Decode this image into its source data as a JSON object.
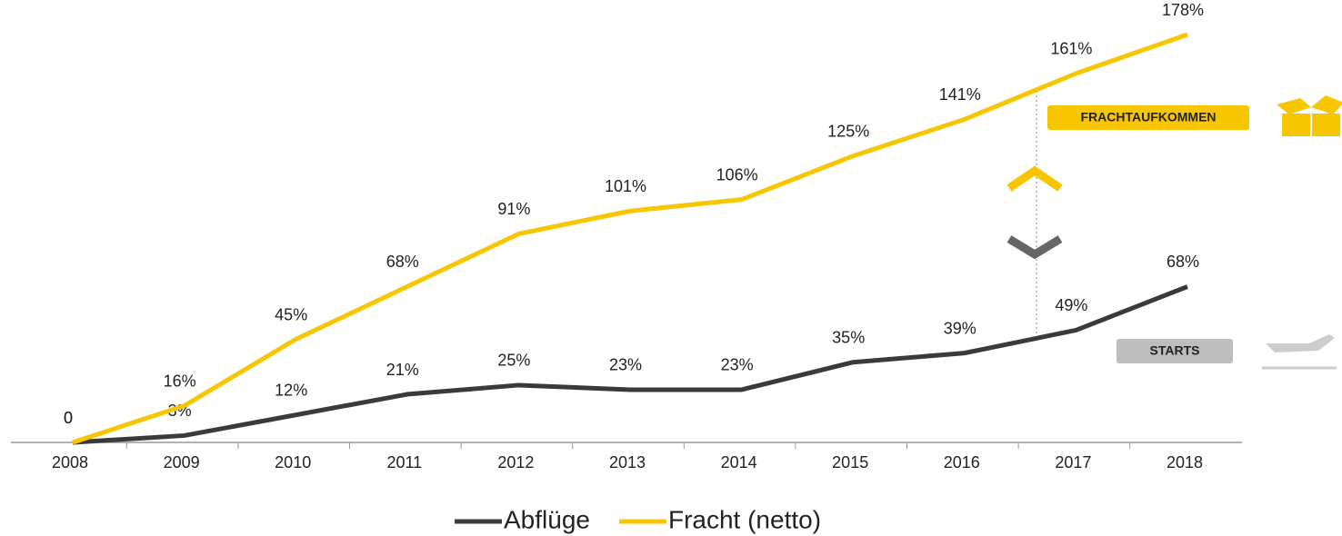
{
  "chart_data": {
    "type": "line",
    "categories": [
      "2008",
      "2009",
      "2010",
      "2011",
      "2012",
      "2013",
      "2014",
      "2015",
      "2016",
      "2017",
      "2018"
    ],
    "series": [
      {
        "name": "Abflüge",
        "color": "#3a3a3a",
        "values": [
          0,
          3,
          12,
          21,
          25,
          23,
          23,
          35,
          39,
          49,
          68
        ],
        "value_labels": [
          "0",
          "3%",
          "12%",
          "21%",
          "25%",
          "23%",
          "23%",
          "35%",
          "39%",
          "49%",
          "68%"
        ]
      },
      {
        "name": "Fracht (netto)",
        "color": "#f7c600",
        "values": [
          0,
          16,
          45,
          68,
          91,
          101,
          106,
          125,
          141,
          161,
          178
        ],
        "value_labels": [
          "0",
          "16%",
          "45%",
          "68%",
          "91%",
          "101%",
          "106%",
          "125%",
          "141%",
          "161%",
          "178%"
        ]
      }
    ],
    "ylim": [
      0,
      180
    ],
    "annotations": [
      "FRACHTAUFKOMMEN",
      "STARTS"
    ]
  }
}
